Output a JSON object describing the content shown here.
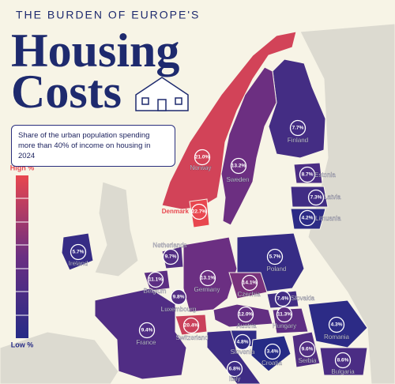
{
  "chart_data": {
    "type": "choropleth",
    "kicker": "THE BURDEN OF EUROPE'S",
    "title": [
      "Housing",
      "Costs"
    ],
    "subtitle": "Share of the urban population spending more than 40% of income on housing in 2024",
    "legend": {
      "high": "High %",
      "low": "Low %"
    },
    "categories": [
      "Finland",
      "Norway",
      "Sweden",
      "Estonia",
      "Latvia",
      "Lithuania",
      "Denmark",
      "Ireland",
      "Netherlands",
      "Poland",
      "Belgium",
      "Germany",
      "Czechia",
      "Slovakia",
      "Luxembourg",
      "Austria",
      "Hungary",
      "Romania",
      "France",
      "Switzerland",
      "Slovenia",
      "Croatia",
      "Serbia",
      "Bulgaria",
      "Italy"
    ],
    "values": [
      7.7,
      21.0,
      13.2,
      8.7,
      7.3,
      4.2,
      22.7,
      5.7,
      9.7,
      5.7,
      11.1,
      13.1,
      14.1,
      7.4,
      9.8,
      12.0,
      11.3,
      4.3,
      9.4,
      20.4,
      4.8,
      3.4,
      9.6,
      8.6,
      6.8
    ],
    "value_labels": [
      "7.7%",
      "21.0%",
      "13.2%",
      "8.7%",
      "7.3%",
      "4.2%",
      "22.7%",
      "5.7%",
      "9.7%",
      "5.7%",
      "11.1%",
      "13.1%",
      "14.1%",
      "7.4%",
      "9.8%",
      "12.0%",
      "11.3%",
      "4.3%",
      "9.4%",
      "20.4%",
      "4.8%",
      "3.4%",
      "9.6%",
      "8.6%",
      "6.8%"
    ],
    "colors": {
      "low": "#262b86",
      "mid": "#6a2f82",
      "high": "#e8474f"
    }
  }
}
